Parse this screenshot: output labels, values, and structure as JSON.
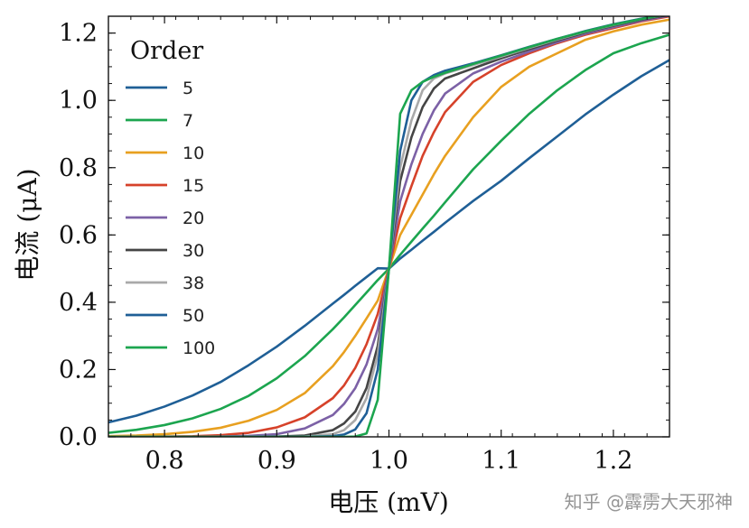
{
  "watermark": "知乎 @霹雳大天邪神",
  "chart_data": {
    "type": "line",
    "title": "",
    "xlabel": "电压 (mV)",
    "ylabel": "电流 (μA)",
    "xlim": [
      0.75,
      1.25
    ],
    "ylim": [
      0.0,
      1.25
    ],
    "xticks": [
      0.8,
      0.9,
      1.0,
      1.1,
      1.2
    ],
    "xtick_labels": [
      "0.8",
      "0.9",
      "1.0",
      "1.1",
      "1.2"
    ],
    "yticks": [
      0.0,
      0.2,
      0.4,
      0.6,
      0.8,
      1.0,
      1.2
    ],
    "ytick_labels": [
      "0.0",
      "0.2",
      "0.4",
      "0.6",
      "0.8",
      "1.0",
      "1.2"
    ],
    "grid": false,
    "legend": {
      "title": "Order",
      "placement": "upper-left"
    },
    "x": [
      0.75,
      0.775,
      0.8,
      0.825,
      0.85,
      0.875,
      0.9,
      0.925,
      0.95,
      0.96,
      0.97,
      0.98,
      0.99,
      1.0,
      1.01,
      1.02,
      1.03,
      1.04,
      1.05,
      1.075,
      1.1,
      1.125,
      1.15,
      1.175,
      1.2,
      1.225,
      1.25
    ],
    "series": [
      {
        "name": "5",
        "color": "#1f5f96",
        "values": [
          0.043,
          0.063,
          0.09,
          0.123,
          0.163,
          0.213,
          0.268,
          0.33,
          0.396,
          0.422,
          0.449,
          0.475,
          0.501,
          0.5,
          0.53,
          0.556,
          0.583,
          0.609,
          0.636,
          0.701,
          0.761,
          0.828,
          0.893,
          0.958,
          1.017,
          1.072,
          1.12
        ]
      },
      {
        "name": "7",
        "color": "#1ca54f",
        "values": [
          0.012,
          0.021,
          0.035,
          0.055,
          0.083,
          0.122,
          0.174,
          0.24,
          0.32,
          0.355,
          0.392,
          0.429,
          0.466,
          0.5,
          0.541,
          0.58,
          0.619,
          0.657,
          0.697,
          0.795,
          0.88,
          0.96,
          1.03,
          1.09,
          1.14,
          1.17,
          1.195
        ]
      },
      {
        "name": "10",
        "color": "#e8a020",
        "values": [
          0.002,
          0.004,
          0.008,
          0.015,
          0.027,
          0.048,
          0.08,
          0.13,
          0.21,
          0.252,
          0.3,
          0.352,
          0.405,
          0.5,
          0.6,
          0.66,
          0.72,
          0.78,
          0.835,
          0.95,
          1.04,
          1.1,
          1.14,
          1.18,
          1.205,
          1.225,
          1.24
        ]
      },
      {
        "name": "15",
        "color": "#d6422a",
        "values": [
          0.0,
          0.0,
          0.001,
          0.002,
          0.005,
          0.012,
          0.028,
          0.058,
          0.115,
          0.153,
          0.205,
          0.275,
          0.365,
          0.5,
          0.65,
          0.745,
          0.835,
          0.905,
          0.965,
          1.055,
          1.105,
          1.14,
          1.17,
          1.195,
          1.215,
          1.235,
          1.25
        ]
      },
      {
        "name": "20",
        "color": "#7c61a6",
        "values": [
          0.0,
          0.0,
          0.0,
          0.0,
          0.001,
          0.003,
          0.008,
          0.025,
          0.065,
          0.098,
          0.145,
          0.215,
          0.32,
          0.5,
          0.7,
          0.81,
          0.9,
          0.97,
          1.02,
          1.08,
          1.115,
          1.145,
          1.173,
          1.198,
          1.218,
          1.237,
          1.252
        ]
      },
      {
        "name": "30",
        "color": "#454545",
        "values": [
          0.0,
          0.0,
          0.0,
          0.0,
          0.0,
          0.0,
          0.001,
          0.004,
          0.02,
          0.04,
          0.075,
          0.145,
          0.27,
          0.5,
          0.76,
          0.89,
          0.98,
          1.035,
          1.065,
          1.095,
          1.125,
          1.152,
          1.178,
          1.202,
          1.222,
          1.24,
          1.254
        ]
      },
      {
        "name": "38",
        "color": "#a9a9a9",
        "values": [
          0.0,
          0.0,
          0.0,
          0.0,
          0.0,
          0.0,
          0.0,
          0.001,
          0.008,
          0.02,
          0.05,
          0.115,
          0.245,
          0.5,
          0.8,
          0.94,
          1.03,
          1.065,
          1.08,
          1.105,
          1.13,
          1.156,
          1.181,
          1.204,
          1.224,
          1.242,
          1.256
        ]
      },
      {
        "name": "50",
        "color": "#1f5f96",
        "values": [
          0.0,
          0.0,
          0.0,
          0.0,
          0.0,
          0.0,
          0.0,
          0.0,
          0.002,
          0.007,
          0.022,
          0.07,
          0.2,
          0.5,
          0.85,
          1.0,
          1.055,
          1.075,
          1.088,
          1.11,
          1.134,
          1.159,
          1.183,
          1.206,
          1.226,
          1.243,
          1.257
        ]
      },
      {
        "name": "100",
        "color": "#1ca54f",
        "values": [
          0.0,
          0.0,
          0.0,
          0.0,
          0.0,
          0.0,
          0.0,
          0.0,
          0.0,
          0.0,
          0.001,
          0.01,
          0.11,
          0.5,
          0.96,
          1.03,
          1.055,
          1.07,
          1.082,
          1.108,
          1.133,
          1.158,
          1.183,
          1.205,
          1.225,
          1.242,
          1.257
        ]
      }
    ]
  }
}
